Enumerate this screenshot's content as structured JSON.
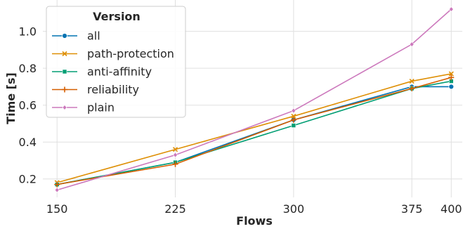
{
  "chart_data": {
    "type": "line",
    "xlabel": "Flows",
    "ylabel": "Time [s]",
    "x": [
      150,
      225,
      300,
      375,
      400
    ],
    "x_ticks": [
      "150",
      "225",
      "300",
      "375",
      "400"
    ],
    "y_ticks": [
      "0.2",
      "0.4",
      "0.6",
      "0.8",
      "1.0"
    ],
    "xlim": [
      141,
      407
    ],
    "ylim": [
      0.1,
      1.17
    ],
    "grid": true,
    "legend": {
      "title": "Version",
      "placement": "top-left"
    },
    "series": [
      {
        "name": "all",
        "color": "#0173b2",
        "marker": "circle",
        "values": [
          0.17,
          0.29,
          0.52,
          0.7,
          0.7
        ]
      },
      {
        "name": "path-protection",
        "color": "#de8f05",
        "marker": "x",
        "values": [
          0.18,
          0.36,
          0.54,
          0.73,
          0.77
        ]
      },
      {
        "name": "anti-affinity",
        "color": "#029e73",
        "marker": "square",
        "values": [
          0.17,
          0.29,
          0.49,
          0.69,
          0.73
        ]
      },
      {
        "name": "reliability",
        "color": "#d55e00",
        "marker": "plus",
        "values": [
          0.17,
          0.28,
          0.52,
          0.69,
          0.75
        ]
      },
      {
        "name": "plain",
        "color": "#cc78bc",
        "marker": "diamond",
        "values": [
          0.14,
          0.33,
          0.57,
          0.93,
          1.12
        ]
      }
    ]
  }
}
